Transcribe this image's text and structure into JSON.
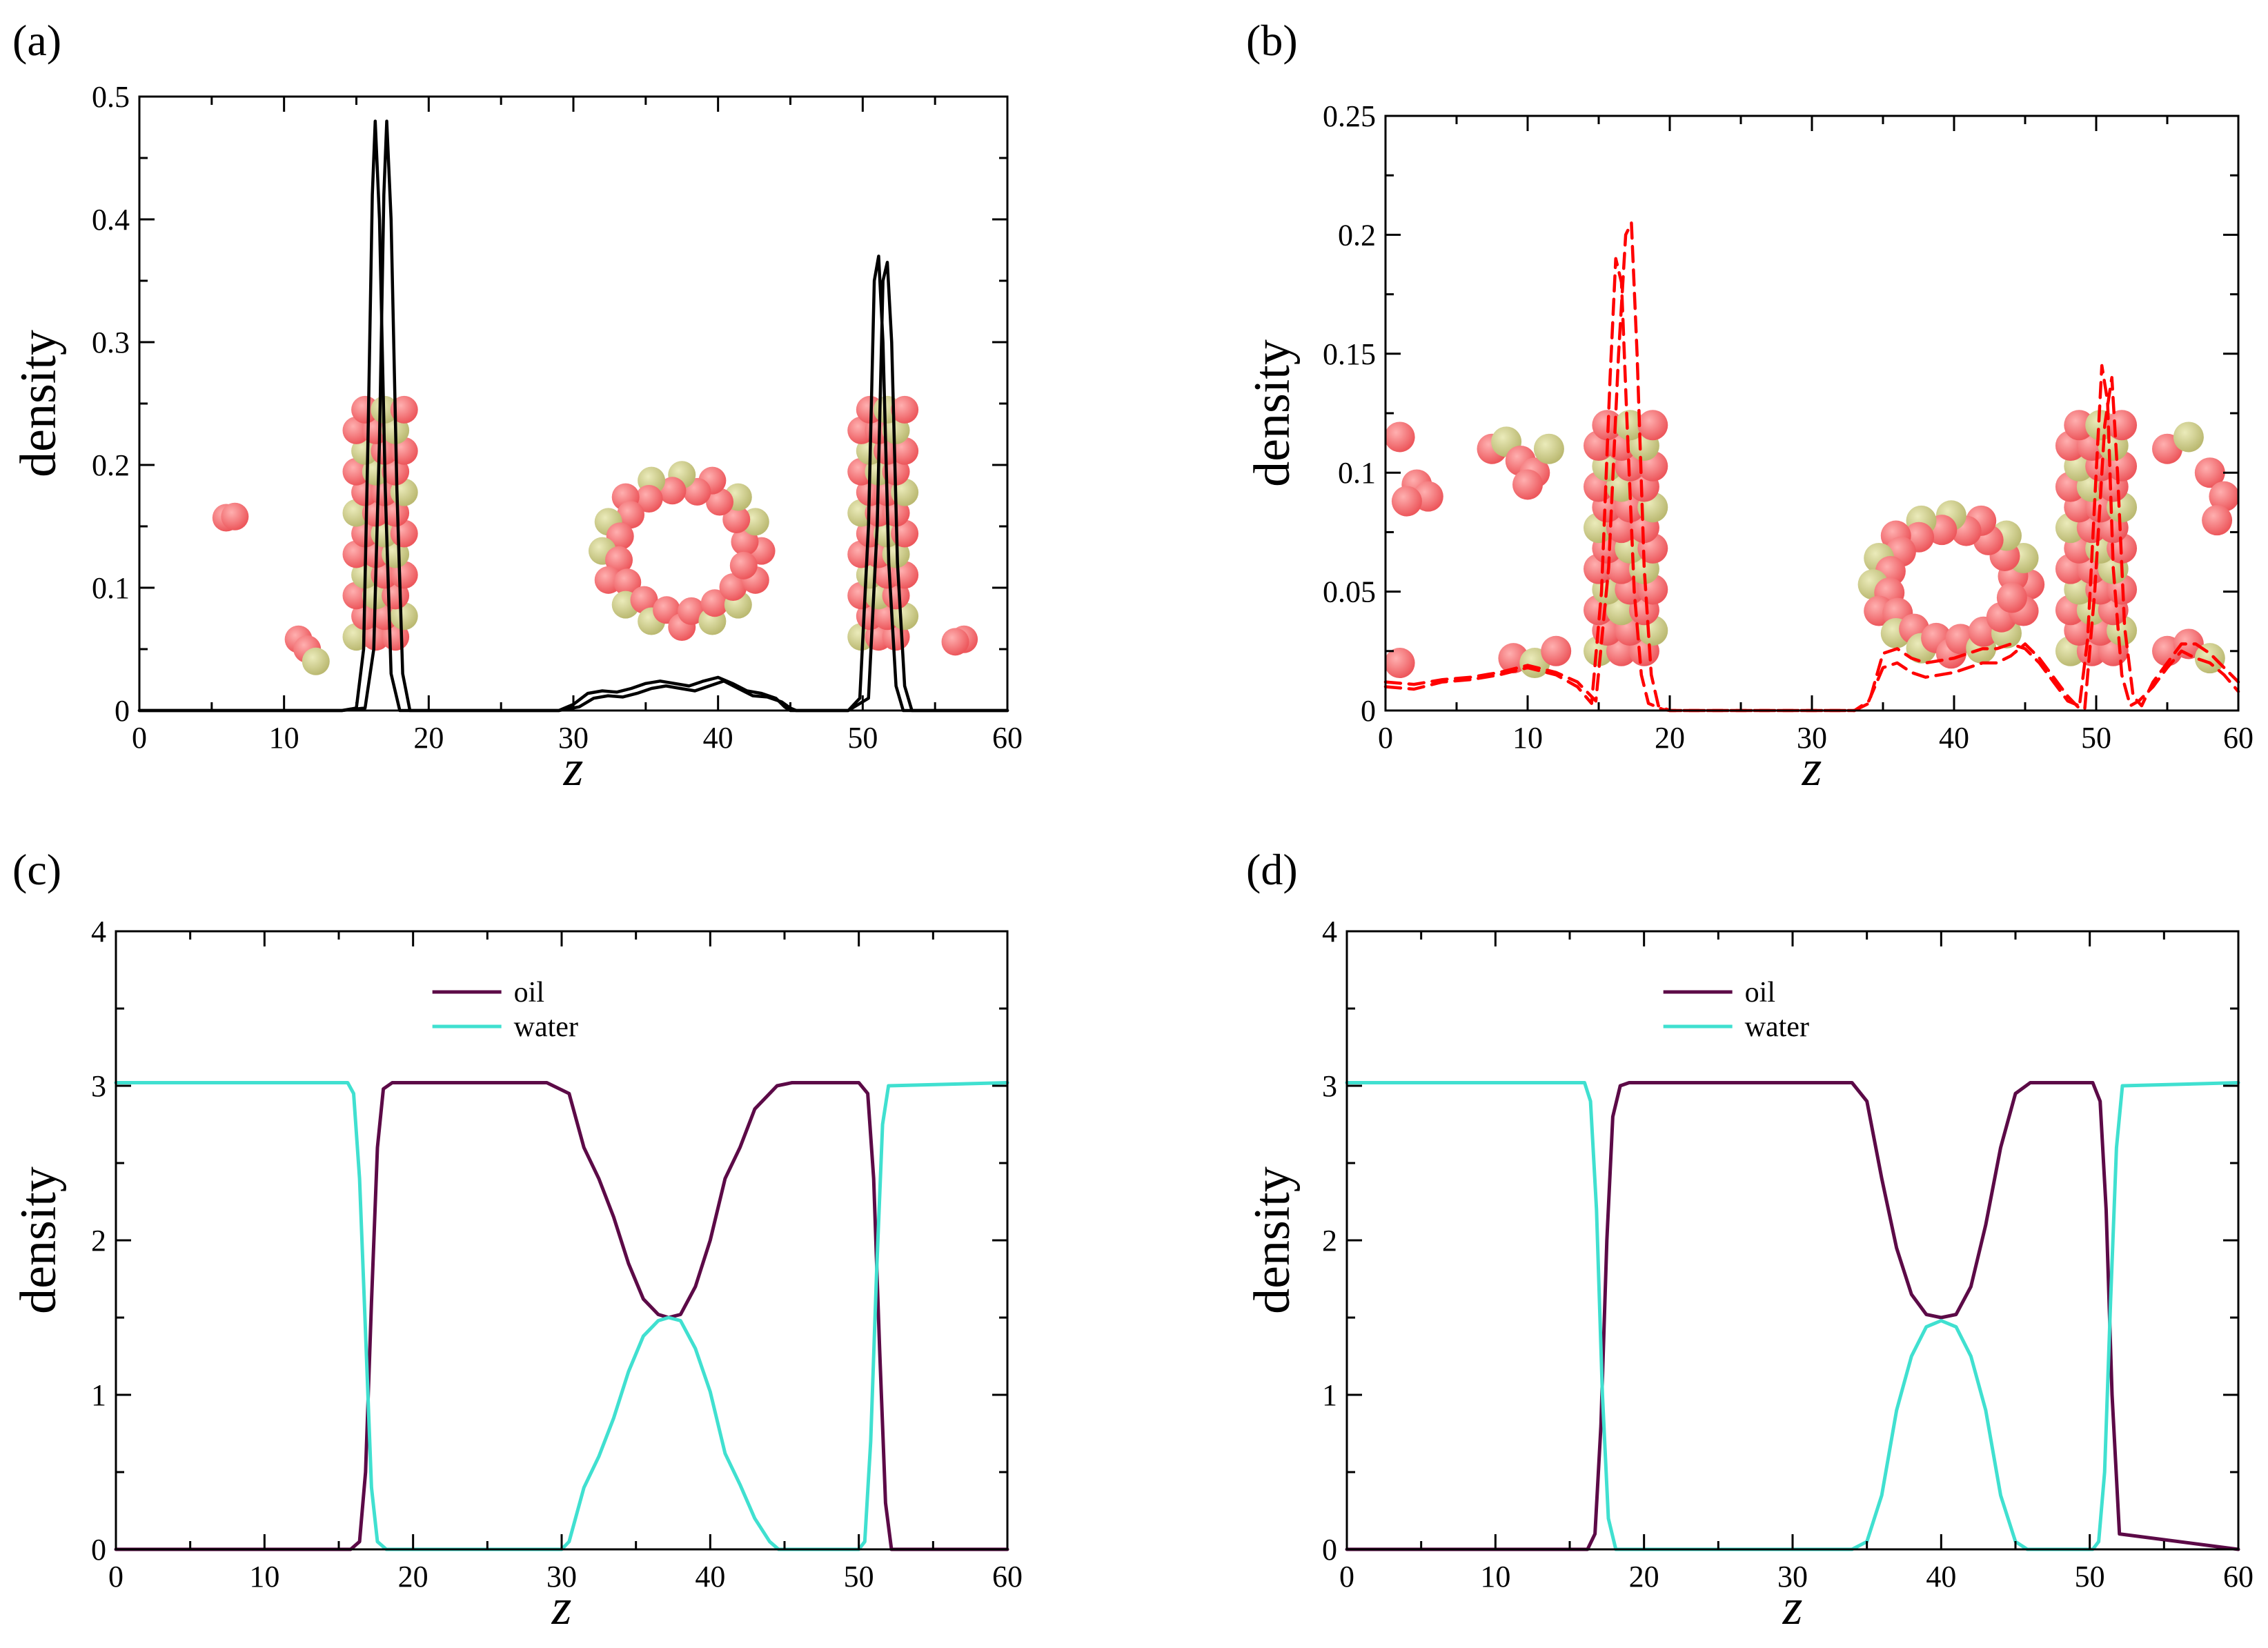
{
  "figure": {
    "panels": [
      "(a)",
      "(b)",
      "(c)",
      "(d)"
    ]
  },
  "chart_data": [
    {
      "id": "a",
      "label": "(a)",
      "type": "line",
      "xlabel": "z",
      "ylabel": "density",
      "xlim": [
        0,
        60
      ],
      "ylim": [
        0,
        0.5
      ],
      "xticks": [
        0,
        10,
        20,
        30,
        40,
        50,
        60
      ],
      "yticks": [
        0,
        0.1,
        0.2,
        0.3,
        0.4,
        0.5
      ],
      "ytick_labels": [
        "0",
        "0.1",
        "0.2",
        "0.3",
        "0.4",
        "0.5"
      ],
      "inset_image": "oil-water molecular snapshot (spheres in red and yellow-green)",
      "series": [
        {
          "name": "",
          "color": "#000000",
          "dash": "solid",
          "x": [
            0,
            14,
            15.0,
            15.5,
            15.8,
            16.1,
            16.3,
            16.6,
            17.0,
            17.4,
            18.0,
            29,
            30,
            31,
            32,
            33,
            34,
            35,
            36,
            37,
            38,
            39,
            40,
            41,
            42,
            43,
            44,
            44.6,
            45,
            49,
            49.8,
            50.4,
            50.8,
            51.1,
            51.4,
            51.8,
            52.3,
            52.8,
            60
          ],
          "y": [
            0,
            0,
            0.002,
            0.05,
            0.22,
            0.42,
            0.48,
            0.4,
            0.18,
            0.03,
            0,
            0,
            0.005,
            0.014,
            0.016,
            0.015,
            0.018,
            0.022,
            0.024,
            0.022,
            0.02,
            0.024,
            0.027,
            0.022,
            0.016,
            0.014,
            0.01,
            0.003,
            0,
            0,
            0.01,
            0.15,
            0.35,
            0.37,
            0.3,
            0.12,
            0.02,
            0,
            0
          ]
        },
        {
          "name": "",
          "color": "#000000",
          "dash": "solid",
          "x": [
            0,
            14,
            15.6,
            16.2,
            16.6,
            16.9,
            17.1,
            17.4,
            17.8,
            18.2,
            18.7,
            29,
            30.4,
            31.4,
            32.4,
            33.4,
            34.4,
            35.4,
            36.4,
            37.4,
            38.4,
            39.4,
            40.4,
            41.4,
            42.4,
            43.4,
            44.4,
            45,
            45.4,
            49,
            50.4,
            51.0,
            51.4,
            51.7,
            52.0,
            52.4,
            52.9,
            53.4,
            60
          ],
          "y": [
            0,
            0,
            0.002,
            0.05,
            0.22,
            0.42,
            0.48,
            0.4,
            0.18,
            0.03,
            0,
            0,
            0.003,
            0.01,
            0.012,
            0.011,
            0.014,
            0.018,
            0.02,
            0.018,
            0.016,
            0.02,
            0.024,
            0.018,
            0.012,
            0.011,
            0.007,
            0.002,
            0,
            0,
            0.01,
            0.15,
            0.35,
            0.365,
            0.3,
            0.12,
            0.02,
            0,
            0
          ]
        }
      ]
    },
    {
      "id": "b",
      "label": "(b)",
      "type": "line",
      "xlabel": "z",
      "ylabel": "density",
      "xlim": [
        0,
        60
      ],
      "ylim": [
        0,
        0.25
      ],
      "xticks": [
        0,
        10,
        20,
        30,
        40,
        50,
        60
      ],
      "yticks": [
        0,
        0.05,
        0.1,
        0.15,
        0.2,
        0.25
      ],
      "ytick_labels": [
        "0",
        "0.05",
        "0.1",
        "0.15",
        "0.2",
        "0.25"
      ],
      "inset_image": "oil-water molecular snapshot (spheres in red and yellow-green)",
      "series": [
        {
          "name": "",
          "color": "#ff0000",
          "dash": "dashed",
          "x": [
            0,
            2,
            4,
            6,
            8,
            10,
            12,
            13.5,
            14.5,
            15.2,
            15.8,
            16.2,
            16.6,
            17.0,
            17.5,
            18.0,
            18.5,
            19.5,
            20,
            30,
            33,
            34,
            35,
            36,
            37,
            38,
            39,
            40,
            41,
            42,
            43,
            44,
            45,
            46,
            47,
            48,
            48.8,
            49.4,
            50.0,
            50.4,
            50.8,
            51.2,
            51.8,
            52.4,
            53,
            54,
            55,
            56,
            57,
            58,
            59,
            60
          ],
          "y": [
            0.01,
            0.009,
            0.012,
            0.013,
            0.015,
            0.018,
            0.015,
            0.01,
            0.003,
            0.05,
            0.14,
            0.19,
            0.18,
            0.12,
            0.05,
            0.015,
            0.003,
            0.0005,
            0,
            0,
            0,
            0.004,
            0.018,
            0.02,
            0.016,
            0.014,
            0.015,
            0.016,
            0.018,
            0.02,
            0.02,
            0.023,
            0.028,
            0.022,
            0.014,
            0.006,
            0.001,
            0.03,
            0.1,
            0.145,
            0.13,
            0.06,
            0.015,
            0.002,
            0.004,
            0.01,
            0.018,
            0.025,
            0.022,
            0.02,
            0.015,
            0.008
          ]
        },
        {
          "name": "",
          "color": "#ff0000",
          "dash": "dashed",
          "x": [
            0,
            2,
            4,
            6,
            8,
            10,
            12,
            13.5,
            14.8,
            15.7,
            16.4,
            16.9,
            17.3,
            17.7,
            18.2,
            18.7,
            19.2,
            20,
            30,
            33,
            34,
            35,
            36,
            37,
            38,
            39,
            40,
            41,
            42,
            43,
            44,
            45,
            46,
            47,
            48,
            49.2,
            49.9,
            50.6,
            51.1,
            51.5,
            52.0,
            52.6,
            53.2,
            54,
            55,
            56,
            57,
            58,
            59,
            60
          ],
          "y": [
            0.012,
            0.011,
            0.013,
            0.014,
            0.016,
            0.019,
            0.016,
            0.012,
            0.004,
            0.06,
            0.15,
            0.2,
            0.205,
            0.15,
            0.06,
            0.015,
            0.002,
            0,
            0,
            0,
            0.003,
            0.024,
            0.026,
            0.022,
            0.02,
            0.021,
            0.022,
            0.024,
            0.026,
            0.026,
            0.028,
            0.026,
            0.02,
            0.012,
            0.004,
            0.001,
            0.05,
            0.12,
            0.14,
            0.1,
            0.035,
            0.006,
            0.002,
            0.012,
            0.02,
            0.028,
            0.028,
            0.024,
            0.018,
            0.012
          ]
        }
      ]
    },
    {
      "id": "c",
      "label": "(c)",
      "type": "line",
      "xlabel": "z",
      "ylabel": "density",
      "xlim": [
        0,
        60
      ],
      "ylim": [
        0,
        4
      ],
      "xticks": [
        0,
        10,
        20,
        30,
        40,
        50,
        60
      ],
      "yticks": [
        0,
        1,
        2,
        3,
        4
      ],
      "ytick_labels": [
        "0",
        "1",
        "2",
        "3",
        "4"
      ],
      "legend": {
        "position": "top-center",
        "entries": [
          "oil",
          "water"
        ]
      },
      "series": [
        {
          "name": "oil",
          "color": "#5c0a47",
          "dash": "solid",
          "x": [
            0,
            15.8,
            16.4,
            16.8,
            17.2,
            17.6,
            18.0,
            18.6,
            29,
            30.5,
            31.5,
            32.5,
            33.5,
            34.5,
            35.5,
            36.5,
            37.2,
            38,
            39,
            40,
            41,
            42,
            43,
            44.5,
            45.5,
            50,
            50.6,
            51.0,
            51.4,
            51.8,
            52.2,
            60
          ],
          "y": [
            0,
            0,
            0.05,
            0.5,
            1.6,
            2.6,
            2.98,
            3.02,
            3.02,
            2.95,
            2.6,
            2.4,
            2.15,
            1.85,
            1.62,
            1.52,
            1.5,
            1.52,
            1.7,
            2.0,
            2.4,
            2.6,
            2.85,
            3.0,
            3.02,
            3.02,
            2.95,
            2.4,
            1.3,
            0.3,
            0,
            0
          ]
        },
        {
          "name": "water",
          "color": "#40e0d0",
          "dash": "solid",
          "x": [
            0,
            15.6,
            16.0,
            16.4,
            16.8,
            17.2,
            17.6,
            18.2,
            30,
            30.5,
            31.5,
            32.5,
            33.5,
            34.5,
            35.5,
            36.5,
            37.2,
            38,
            39,
            40,
            41,
            42,
            43,
            44,
            44.6,
            50,
            50.4,
            50.8,
            51.2,
            51.6,
            52,
            60
          ],
          "y": [
            3.02,
            3.02,
            2.95,
            2.4,
            1.4,
            0.4,
            0.05,
            0,
            0,
            0.05,
            0.4,
            0.6,
            0.85,
            1.15,
            1.38,
            1.48,
            1.5,
            1.48,
            1.3,
            1.02,
            0.62,
            0.42,
            0.2,
            0.05,
            0,
            0,
            0.05,
            0.7,
            1.8,
            2.75,
            3.0,
            3.02
          ]
        }
      ]
    },
    {
      "id": "d",
      "label": "(d)",
      "type": "line",
      "xlabel": "z",
      "ylabel": "density",
      "xlim": [
        0,
        60
      ],
      "ylim": [
        0,
        4
      ],
      "xticks": [
        0,
        10,
        20,
        30,
        40,
        50,
        60
      ],
      "yticks": [
        0,
        1,
        2,
        3,
        4
      ],
      "ytick_labels": [
        "0",
        "1",
        "2",
        "3",
        "4"
      ],
      "legend": {
        "position": "top-center",
        "entries": [
          "oil",
          "water"
        ]
      },
      "series": [
        {
          "name": "oil",
          "color": "#5c0a47",
          "dash": "solid",
          "x": [
            0,
            16.2,
            16.7,
            17.1,
            17.5,
            17.9,
            18.4,
            19,
            34,
            35,
            36,
            37,
            38,
            39,
            40,
            41,
            42,
            43,
            44,
            45,
            46,
            50.2,
            50.7,
            51.1,
            51.5,
            52.0,
            60
          ],
          "y": [
            0,
            0,
            0.1,
            0.8,
            2.0,
            2.8,
            3.0,
            3.02,
            3.02,
            2.9,
            2.4,
            1.95,
            1.65,
            1.52,
            1.5,
            1.52,
            1.7,
            2.1,
            2.6,
            2.95,
            3.02,
            3.02,
            2.9,
            2.2,
            1.0,
            0.1,
            0
          ]
        },
        {
          "name": "water",
          "color": "#40e0d0",
          "dash": "solid",
          "x": [
            0,
            16,
            16.4,
            16.8,
            17.2,
            17.6,
            18.1,
            34,
            35,
            36,
            37,
            38,
            39,
            40,
            41,
            42,
            43,
            44,
            45,
            45.8,
            50.2,
            50.6,
            51.0,
            51.4,
            51.8,
            52.2,
            60
          ],
          "y": [
            3.02,
            3.02,
            2.9,
            2.2,
            1.0,
            0.2,
            0,
            0,
            0.05,
            0.35,
            0.9,
            1.25,
            1.44,
            1.48,
            1.44,
            1.25,
            0.9,
            0.35,
            0.05,
            0,
            0,
            0.05,
            0.5,
            1.6,
            2.6,
            3.0,
            3.02
          ]
        }
      ]
    }
  ]
}
